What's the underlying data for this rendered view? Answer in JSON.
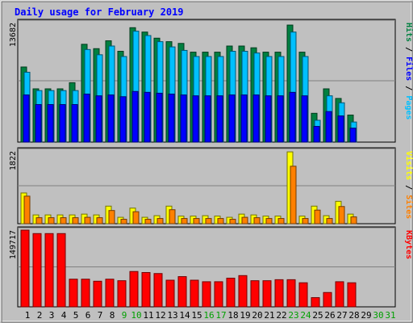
{
  "chart_data": [
    {
      "type": "bar",
      "title": "Daily usage for February 2019",
      "panel": "hits-files-pages",
      "max_label": "13682",
      "ylim": [
        0,
        13682
      ],
      "legend": [
        {
          "key": "pages",
          "label": "Pages",
          "color": "#00c0ff"
        },
        {
          "key": "files",
          "label": "Files",
          "color": "#0000ff"
        },
        {
          "key": "hits",
          "label": "Hits",
          "color": "#008040"
        }
      ],
      "legend_separator": " / ",
      "categories": [
        "1",
        "2",
        "3",
        "4",
        "5",
        "6",
        "7",
        "8",
        "9",
        "10",
        "11",
        "12",
        "13",
        "14",
        "15",
        "16",
        "17",
        "18",
        "19",
        "20",
        "21",
        "22",
        "23",
        "24",
        "25",
        "26",
        "27",
        "28",
        "29",
        "30",
        "31"
      ],
      "series": [
        {
          "name": "Hits",
          "color": "#008040",
          "values": [
            8600,
            6100,
            6100,
            6100,
            6800,
            11200,
            10700,
            11600,
            10400,
            13100,
            12600,
            11900,
            11500,
            11300,
            10300,
            10300,
            10300,
            11000,
            11000,
            10800,
            10300,
            10300,
            13400,
            10300,
            3300,
            6100,
            5000,
            3100,
            null,
            null,
            null
          ]
        },
        {
          "name": "Pages",
          "color": "#00c0ff",
          "values": [
            8000,
            5900,
            5900,
            5900,
            5900,
            10600,
            10000,
            11000,
            9800,
            12700,
            12200,
            11500,
            10900,
            10500,
            9800,
            9800,
            9800,
            10400,
            10400,
            10200,
            9800,
            9800,
            12600,
            9800,
            2500,
            5300,
            4500,
            2300,
            null,
            null,
            null
          ]
        },
        {
          "name": "Files",
          "color": "#0000ff",
          "values": [
            5400,
            4300,
            4300,
            4300,
            4300,
            5500,
            5300,
            5400,
            5200,
            5800,
            5700,
            5600,
            5500,
            5400,
            5300,
            5300,
            5300,
            5400,
            5400,
            5400,
            5300,
            5300,
            5700,
            5300,
            1800,
            3500,
            3000,
            1600,
            null,
            null,
            null
          ]
        }
      ]
    },
    {
      "type": "bar",
      "panel": "visits-sites",
      "max_label": "1822",
      "ylim": [
        0,
        1822
      ],
      "legend": [
        {
          "key": "sites",
          "label": "Sites",
          "color": "#ff8000"
        },
        {
          "key": "visits",
          "label": "Visits",
          "color": "#ffff00"
        }
      ],
      "legend_separator": " / ",
      "categories": [
        "1",
        "2",
        "3",
        "4",
        "5",
        "6",
        "7",
        "8",
        "9",
        "10",
        "11",
        "12",
        "13",
        "14",
        "15",
        "16",
        "17",
        "18",
        "19",
        "20",
        "21",
        "22",
        "23",
        "24",
        "25",
        "26",
        "27",
        "28",
        "29",
        "30",
        "31"
      ],
      "series": [
        {
          "name": "Visits",
          "color": "#ffff00",
          "values": [
            770,
            220,
            220,
            220,
            220,
            240,
            220,
            440,
            160,
            390,
            160,
            200,
            440,
            190,
            190,
            200,
            190,
            160,
            240,
            220,
            190,
            190,
            1800,
            190,
            440,
            200,
            560,
            240,
            null,
            null,
            null
          ]
        },
        {
          "name": "Sites",
          "color": "#ff8000",
          "values": [
            690,
            150,
            150,
            150,
            150,
            160,
            150,
            330,
            110,
            300,
            110,
            130,
            350,
            130,
            130,
            130,
            130,
            110,
            160,
            150,
            130,
            130,
            1440,
            130,
            340,
            130,
            430,
            170,
            null,
            null,
            null
          ]
        }
      ]
    },
    {
      "type": "bar",
      "panel": "kbytes",
      "max_label": "149717",
      "ylim": [
        0,
        149717
      ],
      "legend": [
        {
          "key": "kbytes",
          "label": "KBytes",
          "color": "#ff0000"
        }
      ],
      "legend_separator": "",
      "categories": [
        "1",
        "2",
        "3",
        "4",
        "5",
        "6",
        "7",
        "8",
        "9",
        "10",
        "11",
        "12",
        "13",
        "14",
        "15",
        "16",
        "17",
        "18",
        "19",
        "20",
        "21",
        "22",
        "23",
        "24",
        "25",
        "26",
        "27",
        "28",
        "29",
        "30",
        "31"
      ],
      "series": [
        {
          "name": "KBytes",
          "color": "#ff0000",
          "values": [
            149700,
            143000,
            143000,
            143000,
            54000,
            54000,
            50000,
            54000,
            51000,
            69000,
            67000,
            65000,
            52000,
            59000,
            52000,
            49000,
            49000,
            56000,
            61000,
            51000,
            51000,
            53000,
            53000,
            47000,
            18000,
            28000,
            49000,
            47000,
            null,
            null,
            null
          ]
        }
      ]
    }
  ],
  "weekend_days": [
    "9",
    "10",
    "16",
    "17",
    "23",
    "24",
    "30",
    "31"
  ],
  "colors": {
    "background": "#c0c0c0",
    "plot_background": "#c0c0c0",
    "title": "#0000ff",
    "axis_text": "#000000",
    "weekend_label": "#00a000"
  }
}
